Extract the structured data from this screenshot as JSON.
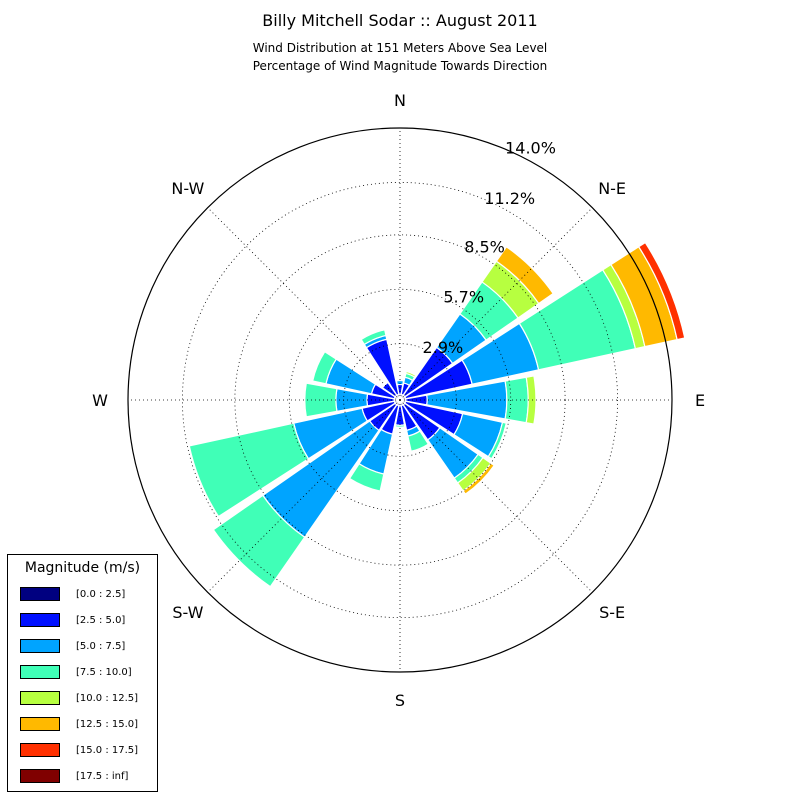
{
  "chart_data": {
    "type": "windrose",
    "title": "Billy Mitchell Sodar :: August 2011",
    "subtitle_lines": [
      "Wind Distribution at 151 Meters Above Sea Level",
      "Percentage of Wind Magnitude Towards Direction"
    ],
    "radial_ticks": [
      "2.9%",
      "5.7%",
      "8.5%",
      "11.2%",
      "14.0%"
    ],
    "radial_tick_values": [
      2.9,
      5.7,
      8.5,
      11.2,
      14.0
    ],
    "r_max": 14.0,
    "direction_labels": [
      "N",
      "N-E",
      "E",
      "S-E",
      "S",
      "S-W",
      "W",
      "N-W"
    ],
    "legend_title": "Magnitude (m/s)",
    "bins": [
      {
        "label": "[0.0 : 2.5]",
        "color": "#000080"
      },
      {
        "label": "[2.5 : 5.0]",
        "color": "#0010ff"
      },
      {
        "label": "[5.0 : 7.5]",
        "color": "#00a4ff"
      },
      {
        "label": "[7.5 : 10.0]",
        "color": "#40ffb7"
      },
      {
        "label": "[10.0 : 12.5]",
        "color": "#b7ff40"
      },
      {
        "label": "[12.5 : 15.0]",
        "color": "#ffb900"
      },
      {
        "label": "[15.0 : 17.5]",
        "color": "#ff3000"
      },
      {
        "label": "[17.5 : inf]",
        "color": "#800000"
      }
    ],
    "sectors": [
      {
        "direction": 0,
        "values": [
          0.3,
          0.5,
          0.2,
          0,
          0,
          0,
          0,
          0
        ]
      },
      {
        "direction": 22.5,
        "values": [
          0.3,
          0.6,
          0.3,
          0.2,
          0.1,
          0,
          0,
          0
        ]
      },
      {
        "direction": 45,
        "values": [
          0.3,
          3.0,
          2.1,
          2.0,
          1.3,
          0.9,
          0,
          0
        ]
      },
      {
        "direction": 67.5,
        "values": [
          0.3,
          3.5,
          3.5,
          5.1,
          0.5,
          1.7,
          0.4,
          0
        ]
      },
      {
        "direction": 90,
        "values": [
          0.3,
          1.1,
          4.1,
          1.1,
          0.4,
          0,
          0,
          0
        ]
      },
      {
        "direction": 112.5,
        "values": [
          0.3,
          3.0,
          2.1,
          0.2,
          0,
          0,
          0,
          0
        ]
      },
      {
        "direction": 135,
        "values": [
          0.3,
          2.2,
          2.4,
          0.3,
          0.5,
          0.2,
          0,
          0
        ]
      },
      {
        "direction": 157.5,
        "values": [
          0.3,
          1.3,
          0.3,
          0.8,
          0,
          0,
          0,
          0
        ]
      },
      {
        "direction": 180,
        "values": [
          0.3,
          1.0,
          0,
          0.1,
          0,
          0,
          0,
          0
        ]
      },
      {
        "direction": 202.5,
        "values": [
          0.3,
          1.5,
          2.1,
          0.9,
          0,
          0,
          0,
          0
        ]
      },
      {
        "direction": 225,
        "values": [
          0.3,
          1.6,
          6.7,
          3.1,
          0,
          0,
          0,
          0
        ]
      },
      {
        "direction": 247.5,
        "values": [
          0.3,
          1.7,
          3.6,
          5.5,
          0,
          0,
          0,
          0
        ]
      },
      {
        "direction": 270,
        "values": [
          0.3,
          1.4,
          1.6,
          1.6,
          0,
          0,
          0,
          0
        ]
      },
      {
        "direction": 292.5,
        "values": [
          0.3,
          1.2,
          2.4,
          0.7,
          0,
          0,
          0,
          0
        ]
      },
      {
        "direction": 315,
        "values": [
          0.3,
          0.8,
          0,
          0,
          0,
          0,
          0,
          0
        ]
      },
      {
        "direction": 337.5,
        "values": [
          0.3,
          2.9,
          0.2,
          0.3,
          0,
          0,
          0,
          0
        ]
      }
    ]
  }
}
